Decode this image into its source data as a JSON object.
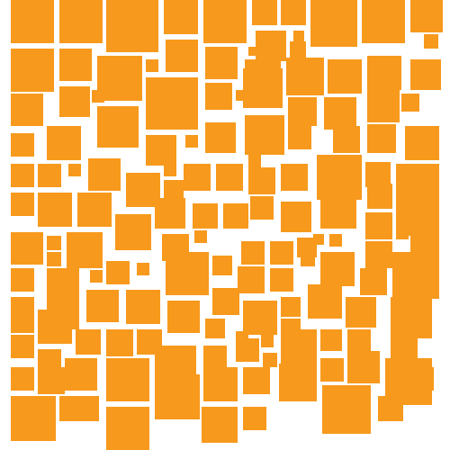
{
  "palette": {
    "background": "#ffffff",
    "tile": "#f7991c"
  }
}
